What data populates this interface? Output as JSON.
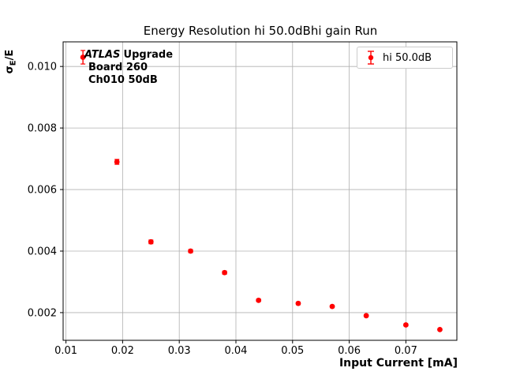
{
  "chart_data": {
    "type": "scatter",
    "title": "Energy Resolution hi 50.0dBhi gain Run",
    "xlabel": "Input Current [mA]",
    "ylabel": "σE/E",
    "ylabel_parts": [
      "σ",
      "E",
      "/E"
    ],
    "xlim": [
      0.0095,
      0.079
    ],
    "ylim": [
      0.0011,
      0.0108
    ],
    "xticks": [
      0.01,
      0.02,
      0.03,
      0.04,
      0.05,
      0.06,
      0.07
    ],
    "xtick_labels": [
      "0.01",
      "0.02",
      "0.03",
      "0.04",
      "0.05",
      "0.06",
      "0.07"
    ],
    "yticks": [
      0.002,
      0.004,
      0.006,
      0.008,
      0.01
    ],
    "ytick_labels": [
      "0.002",
      "0.004",
      "0.006",
      "0.008",
      "0.010"
    ],
    "grid": true,
    "grid_color": "#b0b0b0",
    "background_color": "#ffffff",
    "legend": {
      "label": "hi 50.0dB",
      "position": "upper right"
    },
    "annotation": {
      "experiment": "ATLAS",
      "label": "Upgrade",
      "board": "Board 260",
      "channel": "Ch010 50dB"
    },
    "series": [
      {
        "name": "hi 50.0dB",
        "color": "#ff0000",
        "marker": "circle",
        "x": [
          0.013,
          0.019,
          0.025,
          0.032,
          0.038,
          0.044,
          0.051,
          0.057,
          0.063,
          0.07,
          0.076
        ],
        "y": [
          0.0103,
          0.0069,
          0.0043,
          0.004,
          0.0033,
          0.0024,
          0.0023,
          0.0022,
          0.0019,
          0.0016,
          0.00145
        ],
        "yerr": [
          0.00022,
          8e-05,
          6e-05,
          5e-05,
          5e-05,
          4e-05,
          4e-05,
          4e-05,
          3e-05,
          3e-05,
          3e-05
        ]
      }
    ]
  }
}
